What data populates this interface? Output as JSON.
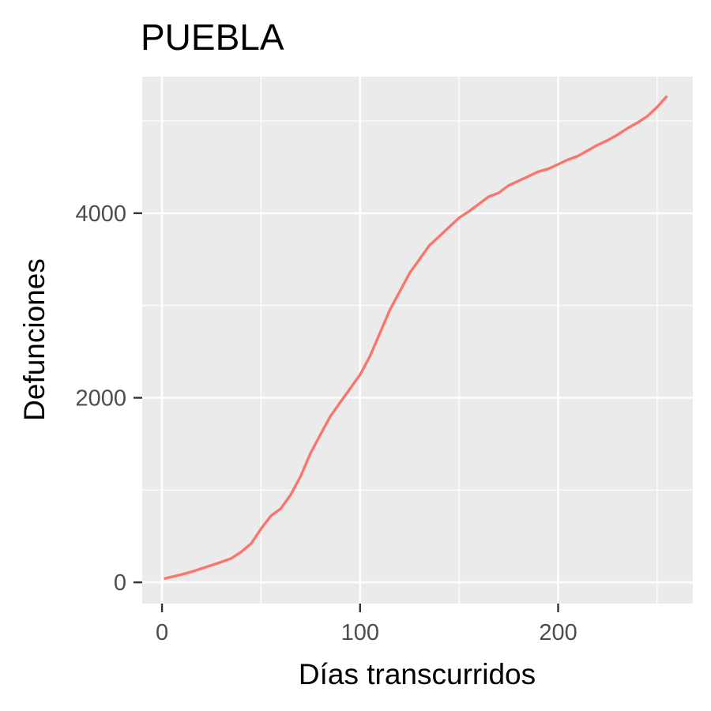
{
  "chart_data": {
    "type": "line",
    "title": "PUEBLA",
    "xlabel": "Días transcurridos",
    "ylabel": "Defunciones",
    "xlim": [
      -10,
      268
    ],
    "ylim": [
      -230,
      5480
    ],
    "grid": true,
    "legend": "none",
    "x_ticks": [
      {
        "value": 0,
        "label": "0"
      },
      {
        "value": 100,
        "label": "100"
      },
      {
        "value": 200,
        "label": "200"
      }
    ],
    "x_minor": [
      50,
      150,
      250
    ],
    "y_ticks": [
      {
        "value": 0,
        "label": "0"
      },
      {
        "value": 2000,
        "label": "2000"
      },
      {
        "value": 4000,
        "label": "4000"
      }
    ],
    "y_minor": [
      1000,
      3000,
      5000
    ],
    "colors": {
      "panel": "#ebebeb",
      "grid": "#ffffff",
      "series": "#f8766d",
      "tick": "#333333"
    },
    "series": [
      {
        "x": [
          1,
          5,
          10,
          15,
          20,
          25,
          30,
          35,
          40,
          45,
          50,
          55,
          60,
          65,
          70,
          75,
          80,
          85,
          90,
          95,
          100,
          105,
          110,
          115,
          120,
          125,
          130,
          135,
          140,
          145,
          150,
          155,
          160,
          165,
          170,
          175,
          180,
          185,
          190,
          195,
          200,
          205,
          210,
          215,
          220,
          225,
          230,
          235,
          240,
          245,
          250,
          255
        ],
        "values": [
          40,
          60,
          85,
          115,
          150,
          185,
          220,
          260,
          330,
          420,
          580,
          720,
          800,
          950,
          1150,
          1400,
          1600,
          1800,
          1950,
          2100,
          2250,
          2450,
          2700,
          2950,
          3150,
          3350,
          3500,
          3650,
          3750,
          3850,
          3950,
          4020,
          4100,
          4180,
          4220,
          4300,
          4350,
          4400,
          4450,
          4480,
          4530,
          4580,
          4620,
          4680,
          4740,
          4790,
          4850,
          4920,
          4980,
          5050,
          5150,
          5270
        ]
      }
    ]
  }
}
